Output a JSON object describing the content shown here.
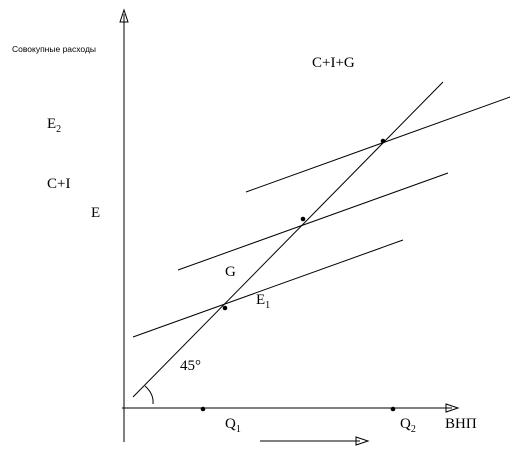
{
  "y_axis_label": "Совокупные расходы",
  "x_axis_label": "ВНП",
  "lines": {
    "cig": "C+I+G",
    "ci": "C+I"
  },
  "labels": {
    "e2": {
      "text": "E",
      "sub": "2"
    },
    "e": "E",
    "g": "G",
    "e1": {
      "text": "E",
      "sub": "1"
    },
    "angle": "45°",
    "q1": {
      "text": "Q",
      "sub": "1"
    },
    "q2": {
      "text": "Q",
      "sub": "2"
    }
  }
}
